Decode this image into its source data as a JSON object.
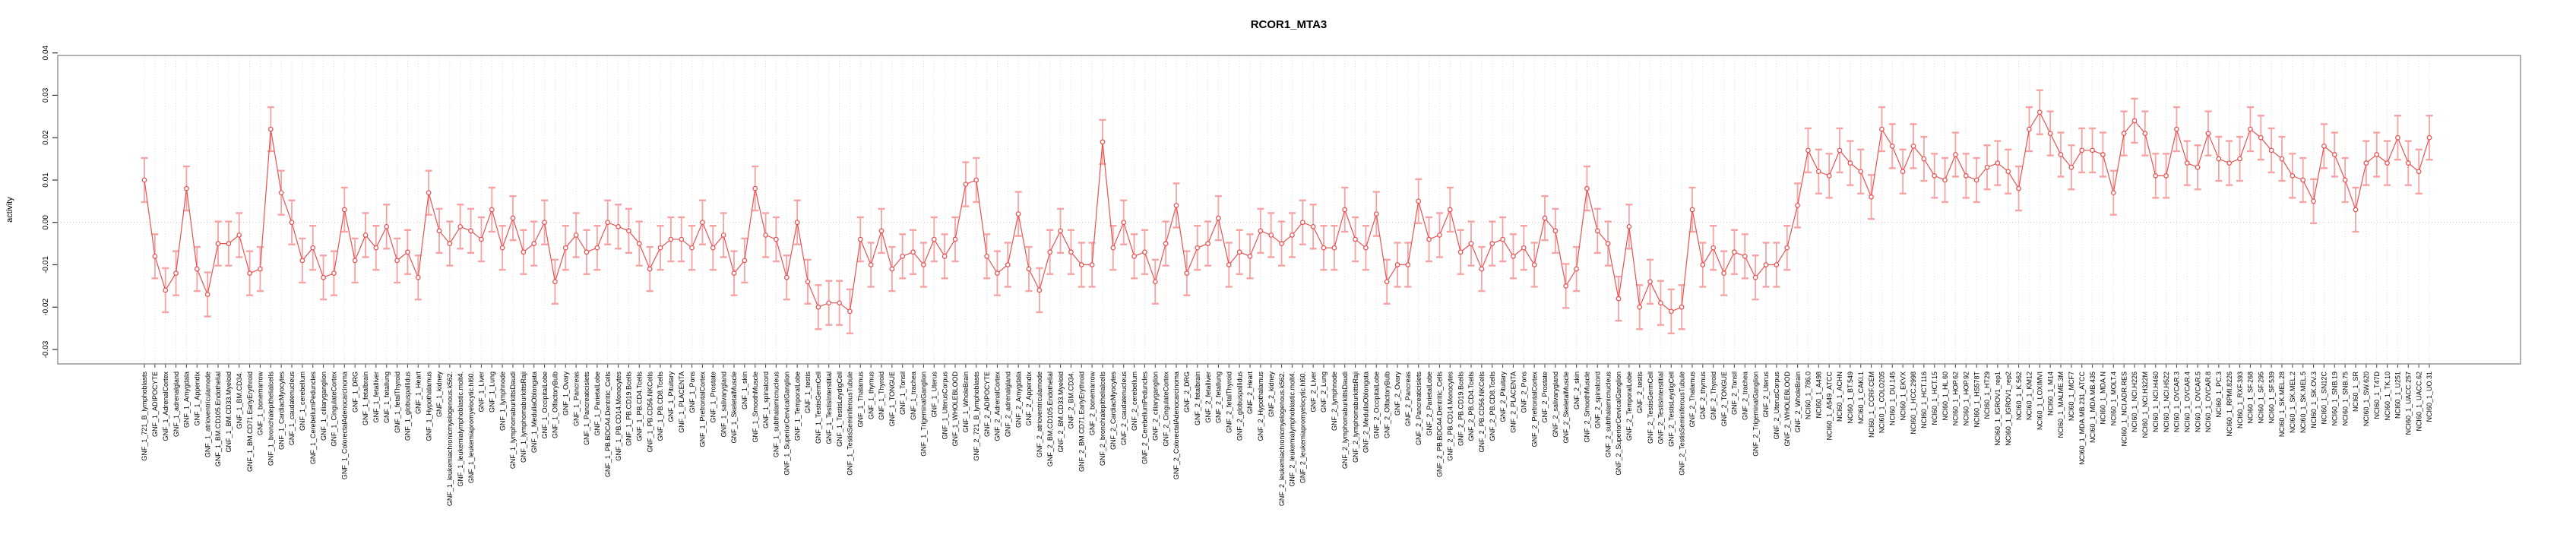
{
  "page": {
    "background": "#ffffff"
  },
  "chart_data": {
    "type": "line",
    "title": "RCOR1_MTA3",
    "ylabel": "activity",
    "xlabel": "",
    "legend": "none",
    "grid": {
      "vertical": "dotted line at every category",
      "horizontal": "dotted line at 0.00 only"
    },
    "marker": "open-circle",
    "series_color": "#e85151",
    "error_bar_color": "#f5a3a3",
    "gridline_color": "#d9d9d9",
    "zero_line_color": "#c4c4c4",
    "box_color": "#878787",
    "error_bar_half_width": 0.0052,
    "axis": {
      "ymin": -0.0334,
      "ymax": 0.0394,
      "ytick_labels": [
        "0.04",
        "0.03",
        "0.02",
        "0.01",
        "0.00",
        "-0.01",
        "-0.02",
        "-0.03"
      ]
    },
    "categories": [
      "GNF_1_721_B_lymphoblasts",
      "GNF_1_ADIPOCYTE",
      "GNF_1_AdrenalCortex",
      "GNF_1_adrenalgland",
      "GNF_1_Amygdala",
      "GNF_1_Appendix",
      "GNF_1_atrioventricularnode",
      "GNF_1_BM.CD105.Endothelial",
      "GNF_1_BM.CD33.Myeloid",
      "GNF_1_BM.CD34.",
      "GNF_1_BM.CD71.EarlyErythroid",
      "GNF_1_bonemarrow",
      "GNF_1_bronchialepithelialcells",
      "GNF_1_CardiacMyocytes",
      "GNF_1_caudatenucleus",
      "GNF_1_cerebellum",
      "GNF_1_CerebellumPeduncles",
      "GNF_1_ciliaryganglion",
      "GNF_1_CingulateCortex",
      "GNF_1_ColorectalAdenocarcinoma",
      "GNF_1_DRG",
      "GNF_1_fetalbrain",
      "GNF_1_fetalliver",
      "GNF_1_fetallung",
      "GNF_1_fetalThyroid",
      "GNF_1_globuspallidus",
      "GNF_1_Heart",
      "GNF_1_Hypothalamus",
      "GNF_1_kidney",
      "GNF_1_leukemiachronicmyelogenous.k562.",
      "GNF_1_leukemialymphoblastic.molt4.",
      "GNF_1_leukemiapromyelocytic.hl60.",
      "GNF_1_Liver",
      "GNF_1_Lung",
      "GNF_1_lymphnode",
      "GNF_1_lymphomaburkittsDaudi",
      "GNF_1_lymphomaburkittsRaji",
      "GNF_1_MedullaOblongata",
      "GNF_1_OccipitalLobe",
      "GNF_1_OlfactoryBulb",
      "GNF_1_Ovary",
      "GNF_1_Pancreas",
      "GNF_1_Pancreaticislets",
      "GNF_1_ParietalLobe",
      "GNF_1_PB.BDCA4.Dentritic_Cells",
      "GNF_1_PB.CD14.Monocytes",
      "GNF_1_PB.CD19.Bcells",
      "GNF_1_PB.CD4.Tcells",
      "GNF_1_PB.CD56.NKCells",
      "GNF_1_PB.CD8.Tcells",
      "GNF_1_Pituitary",
      "GNF_1_PLACENTA",
      "GNF_1_Pons",
      "GNF_1_PrefrontalCortex",
      "GNF_1_Prostate",
      "GNF_1_salivarygland",
      "GNF_1_SkeletalMuscle",
      "GNF_1_skin",
      "GNF_1_SmoothMuscle",
      "GNF_1_spinalcord",
      "GNF_1_subthalamicnucleus",
      "GNF_1_SuperiorCervicalGanglion",
      "GNF_1_TemporalLobe",
      "GNF_1_testis",
      "GNF_1_TestisGermCell",
      "GNF_1_TestisInterstitial",
      "GNF_1_TestisLeydigCell",
      "GNF_1_TestisSeminiferousTubule",
      "GNF_1_Thalamus",
      "GNF_1_thymus",
      "GNF_1_Thyroid",
      "GNF_1_TONGUE",
      "GNF_1_Tonsil",
      "GNF_1_trachea",
      "GNF_1_TrigeminalGanglion",
      "GNF_1_Uterus",
      "GNF_1_UterusCorpus",
      "GNF_1_WHOLEBLOOD",
      "GNF_1_WholeBrain",
      "GNF_2_721_B_lymphoblasts",
      "GNF_2_ADIPOCYTE",
      "GNF_2_AdrenalCortex",
      "GNF_2_adrenalgland",
      "GNF_2_Amygdala",
      "GNF_2_Appendix",
      "GNF_2_atrioventricularnode",
      "GNF_2_BM.CD105.Endothelial",
      "GNF_2_BM.CD33.Myeloid",
      "GNF_2_BM.CD34.",
      "GNF_2_BM.CD71.EarlyErythroid",
      "GNF_2_bonemarrow",
      "GNF_2_bronchialepithelialcells",
      "GNF_2_CardiacMyocytes",
      "GNF_2_caudatenucleus",
      "GNF_2_cerebellum",
      "GNF_2_CerebellumPeduncles",
      "GNF_2_ciliaryganglion",
      "GNF_2_CingulateCortex",
      "GNF_2_ColorectalAdenocarcinoma",
      "GNF_2_DRG",
      "GNF_2_fetalbrain",
      "GNF_2_fetalliver",
      "GNF_2_fetallung",
      "GNF_2_fetalThyroid",
      "GNF_2_globuspallidus",
      "GNF_2_Heart",
      "GNF_2_Hypothalamus",
      "GNF_2_kidney",
      "GNF_2_leukemiachronicmyelogenous.k562.",
      "GNF_2_leukemialymphoblastic.molt4.",
      "GNF_2_leukemiapromyelocytic.hl60.",
      "GNF_2_Liver",
      "GNF_2_Lung",
      "GNF_2_lymphnode",
      "GNF_2_lymphomaburkittsDaudi",
      "GNF_2_lymphomaburkittsRaji",
      "GNF_2_MedullaOblongata",
      "GNF_2_OccipitalLobe",
      "GNF_2_OlfactoryBulb",
      "GNF_2_Ovary",
      "GNF_2_Pancreas",
      "GNF_2_Pancreaticislets",
      "GNF_2_ParietalLobe",
      "GNF_2_PB.BDCA4.Dentritic_Cells",
      "GNF_2_PB.CD14.Monocytes",
      "GNF_2_PB.CD19.Bcells",
      "GNF_2_PB.CD4.Tcells",
      "GNF_2_PB.CD56.NKCells",
      "GNF_2_PB.CD8.Tcells",
      "GNF_2_Pituitary",
      "GNF_2_PLACENTA",
      "GNF_2_Pons",
      "GNF_2_PrefrontalCortex",
      "GNF_2_Prostate",
      "GNF_2_salivarygland",
      "GNF_2_SkeletalMuscle",
      "GNF_2_skin",
      "GNF_2_SmoothMuscle",
      "GNF_2_spinalcord",
      "GNF_2_subthalamicnucleus",
      "GNF_2_SuperiorCervicalGanglion",
      "GNF_2_TemporalLobe",
      "GNF_2_testis",
      "GNF_2_TestisGermCell",
      "GNF_2_TestisInterstitial",
      "GNF_2_TestisLeydigCell",
      "GNF_2_TestisSeminiferousTubule",
      "GNF_2_Thalamus",
      "GNF_2_thymus",
      "GNF_2_Thyroid",
      "GNF_2_TONGUE",
      "GNF_2_Tonsil",
      "GNF_2_trachea",
      "GNF_2_TrigeminalGanglion",
      "GNF_2_Uterus",
      "GNF_2_UterusCorpus",
      "GNF_2_WHOLEBLOOD",
      "GNF_2_WholeBrain",
      "NCI60_1_786.0",
      "NCI60_1_A498",
      "NCI60_1_A549_ATCC",
      "NCI60_1_ACHN",
      "NCI60_1_BT.549",
      "NCI60_1_CAKI.1",
      "NCI60_1_CCRF.CEM",
      "NCI60_1_COLO205",
      "NCI60_1_DU.145",
      "NCI60_1_EKVX",
      "NCI60_1_HCC.2998",
      "NCI60_1_HCT.116",
      "NCI60_1_HCT.15",
      "NCI60_1_HL.60",
      "NCI60_1_HOP.62",
      "NCI60_1_HOP.92",
      "NCI60_1_HS578T",
      "NCI60_1_HT29",
      "NCI60_1_IGROV1_rep1",
      "NCI60_1_IGROV1_rep2",
      "NCI60_1_K.562",
      "NCI60_1_KM12",
      "NCI60_1_LOXIMVI",
      "NCI60_1_M14",
      "NCI60_1_MALME.3M",
      "NCI60_1_MCF7",
      "NCI60_1_MDA.MB.231_ATCC",
      "NCI60_1_MDA.MB.435",
      "NCI60_1_MDA.N",
      "NCI60_1_MOLT.4",
      "NCI60_1_NCI.ADR.RES",
      "NCI60_1_NCI.H226",
      "NCI60_1_NCI.H322M",
      "NCI60_1_NCI.H460",
      "NCI60_1_NCI.H522",
      "NCI60_1_OVCAR.3",
      "NCI60_1_OVCAR.4",
      "NCI60_1_OVCAR.5",
      "NCI60_1_OVCAR.8",
      "NCI60_1_PC.3",
      "NCI60_1_RPMI.8226",
      "NCI60_1_RXF.393",
      "NCI60_1_SF.268",
      "NCI60_1_SF.295",
      "NCI60_1_SF.539",
      "NCI60_1_SK.MEL.28",
      "NCI60_1_SK.MEL.2",
      "NCI60_1_SK.MEL.5",
      "NCI60_1_SK.OV.3",
      "NCI60_1_SN12C",
      "NCI60_1_SNB.19",
      "NCI60_1_SNB.75",
      "NCI60_1_SR",
      "NCI60_1_SW.620",
      "NCI60_1_T47D",
      "NCI60_1_TK.10",
      "NCI60_1_U251",
      "NCI60_1_UACC.257",
      "NCI60_1_UACC.62",
      "NCI60_1_UO.31"
    ],
    "values": [
      0.01,
      -0.008,
      -0.016,
      -0.012,
      0.008,
      -0.011,
      -0.017,
      -0.005,
      -0.005,
      -0.003,
      -0.012,
      -0.011,
      0.022,
      0.007,
      0.0,
      -0.009,
      -0.006,
      -0.013,
      -0.012,
      0.003,
      -0.009,
      -0.003,
      -0.006,
      -0.001,
      -0.009,
      -0.007,
      -0.013,
      0.007,
      -0.002,
      -0.005,
      -0.001,
      -0.002,
      -0.004,
      0.003,
      -0.006,
      0.001,
      -0.007,
      -0.005,
      0.0,
      -0.014,
      -0.006,
      -0.003,
      -0.007,
      -0.006,
      0.0,
      -0.001,
      -0.002,
      -0.005,
      -0.011,
      -0.006,
      -0.004,
      -0.004,
      -0.006,
      0.0,
      -0.006,
      -0.003,
      -0.012,
      -0.009,
      0.008,
      -0.003,
      -0.004,
      -0.013,
      0.0,
      -0.014,
      -0.02,
      -0.019,
      -0.019,
      -0.021,
      -0.004,
      -0.01,
      -0.002,
      -0.011,
      -0.008,
      -0.007,
      -0.01,
      -0.004,
      -0.008,
      -0.004,
      0.009,
      0.01,
      -0.008,
      -0.012,
      -0.01,
      0.002,
      -0.011,
      -0.016,
      -0.007,
      -0.002,
      -0.007,
      -0.01,
      -0.01,
      0.019,
      -0.006,
      0.0,
      -0.008,
      -0.007,
      -0.014,
      -0.005,
      0.004,
      -0.012,
      -0.006,
      -0.005,
      0.001,
      -0.01,
      -0.007,
      -0.008,
      -0.002,
      -0.003,
      -0.005,
      -0.003,
      0.0,
      -0.001,
      -0.006,
      -0.006,
      0.003,
      -0.004,
      -0.006,
      0.002,
      -0.014,
      -0.01,
      -0.01,
      0.005,
      -0.004,
      -0.003,
      0.003,
      -0.007,
      -0.005,
      -0.011,
      -0.005,
      -0.004,
      -0.008,
      -0.006,
      -0.01,
      0.001,
      -0.002,
      -0.015,
      -0.011,
      0.008,
      -0.002,
      -0.005,
      -0.018,
      -0.001,
      -0.02,
      -0.014,
      -0.019,
      -0.021,
      -0.02,
      0.003,
      -0.01,
      -0.006,
      -0.012,
      -0.007,
      -0.008,
      -0.013,
      -0.01,
      -0.01,
      -0.006,
      0.004,
      0.017,
      0.012,
      0.011,
      0.017,
      0.014,
      0.012,
      0.006,
      0.022,
      0.018,
      0.012,
      0.018,
      0.015,
      0.011,
      0.01,
      0.016,
      0.011,
      0.01,
      0.013,
      0.014,
      0.012,
      0.008,
      0.022,
      0.026,
      0.021,
      0.016,
      0.013,
      0.017,
      0.017,
      0.016,
      0.007,
      0.021,
      0.024,
      0.021,
      0.011,
      0.011,
      0.022,
      0.014,
      0.013,
      0.021,
      0.015,
      0.014,
      0.015,
      0.022,
      0.02,
      0.017,
      0.015,
      0.011,
      0.01,
      0.005,
      0.018,
      0.016,
      0.01,
      0.003,
      0.014,
      0.016,
      0.014,
      0.02,
      0.014,
      0.012,
      0.02
    ]
  }
}
